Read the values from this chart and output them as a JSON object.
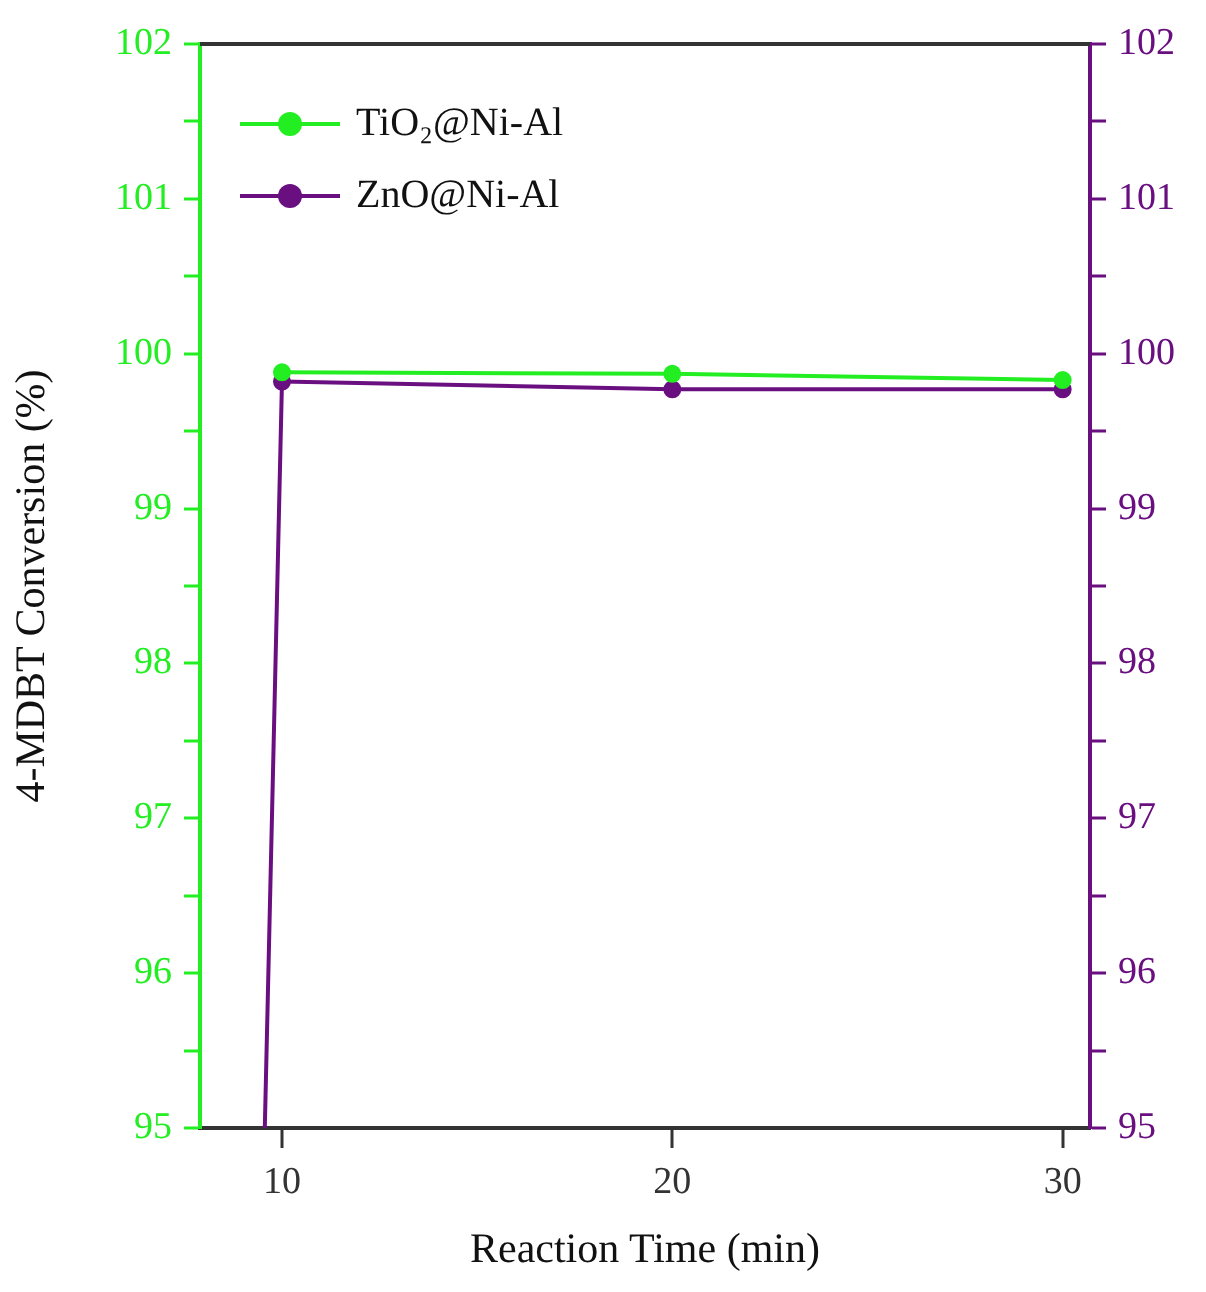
{
  "chart_data": {
    "type": "line",
    "xlabel": "Reaction Time (min)",
    "ylabel": "4-MDBT Conversion (%)",
    "xlim": [
      7.9,
      30.7
    ],
    "xticks": [
      10,
      20,
      30
    ],
    "ylim": [
      95,
      102
    ],
    "yticks": [
      95,
      {
        "value": 95.5,
        "label": null
      },
      96,
      {
        "value": 96.5,
        "label": null
      },
      97,
      {
        "value": 97.5,
        "label": null
      },
      98,
      {
        "value": 98.5,
        "label": null
      },
      99,
      {
        "value": 99.5,
        "label": null
      },
      100,
      {
        "value": 100.5,
        "label": null
      },
      101,
      {
        "value": 101.5,
        "label": null
      },
      102
    ],
    "y2lim": [
      95,
      102
    ],
    "y2ticks": [
      95,
      {
        "value": 95.5,
        "label": null
      },
      96,
      {
        "value": 96.5,
        "label": null
      },
      97,
      {
        "value": 97.5,
        "label": null
      },
      98,
      {
        "value": 98.5,
        "label": null
      },
      99,
      {
        "value": 99.5,
        "label": null
      },
      100,
      {
        "value": 100.5,
        "label": null
      },
      101,
      {
        "value": 101.5,
        "label": null
      },
      102
    ],
    "marker": "circle",
    "line_style": "solid",
    "legend": "top left",
    "grid": false,
    "series": [
      {
        "name": "TiO₂@Ni-Al",
        "color": "#22ee22",
        "x": [
          10,
          20,
          30
        ],
        "values": [
          99.88,
          99.87,
          99.83
        ]
      },
      {
        "name": "ZnO@Ni-Al",
        "color": "#6a0f80",
        "axis": "y2",
        "x": [
          10,
          20,
          30
        ],
        "values": [
          99.82,
          99.77,
          99.77
        ]
      },
      {
        "type": "line",
        "color": "#6a0f80",
        "axis": "y2",
        "marker": "none",
        "x": [
          9.56,
          10
        ],
        "values": [
          95,
          99.82
        ]
      }
    ]
  }
}
